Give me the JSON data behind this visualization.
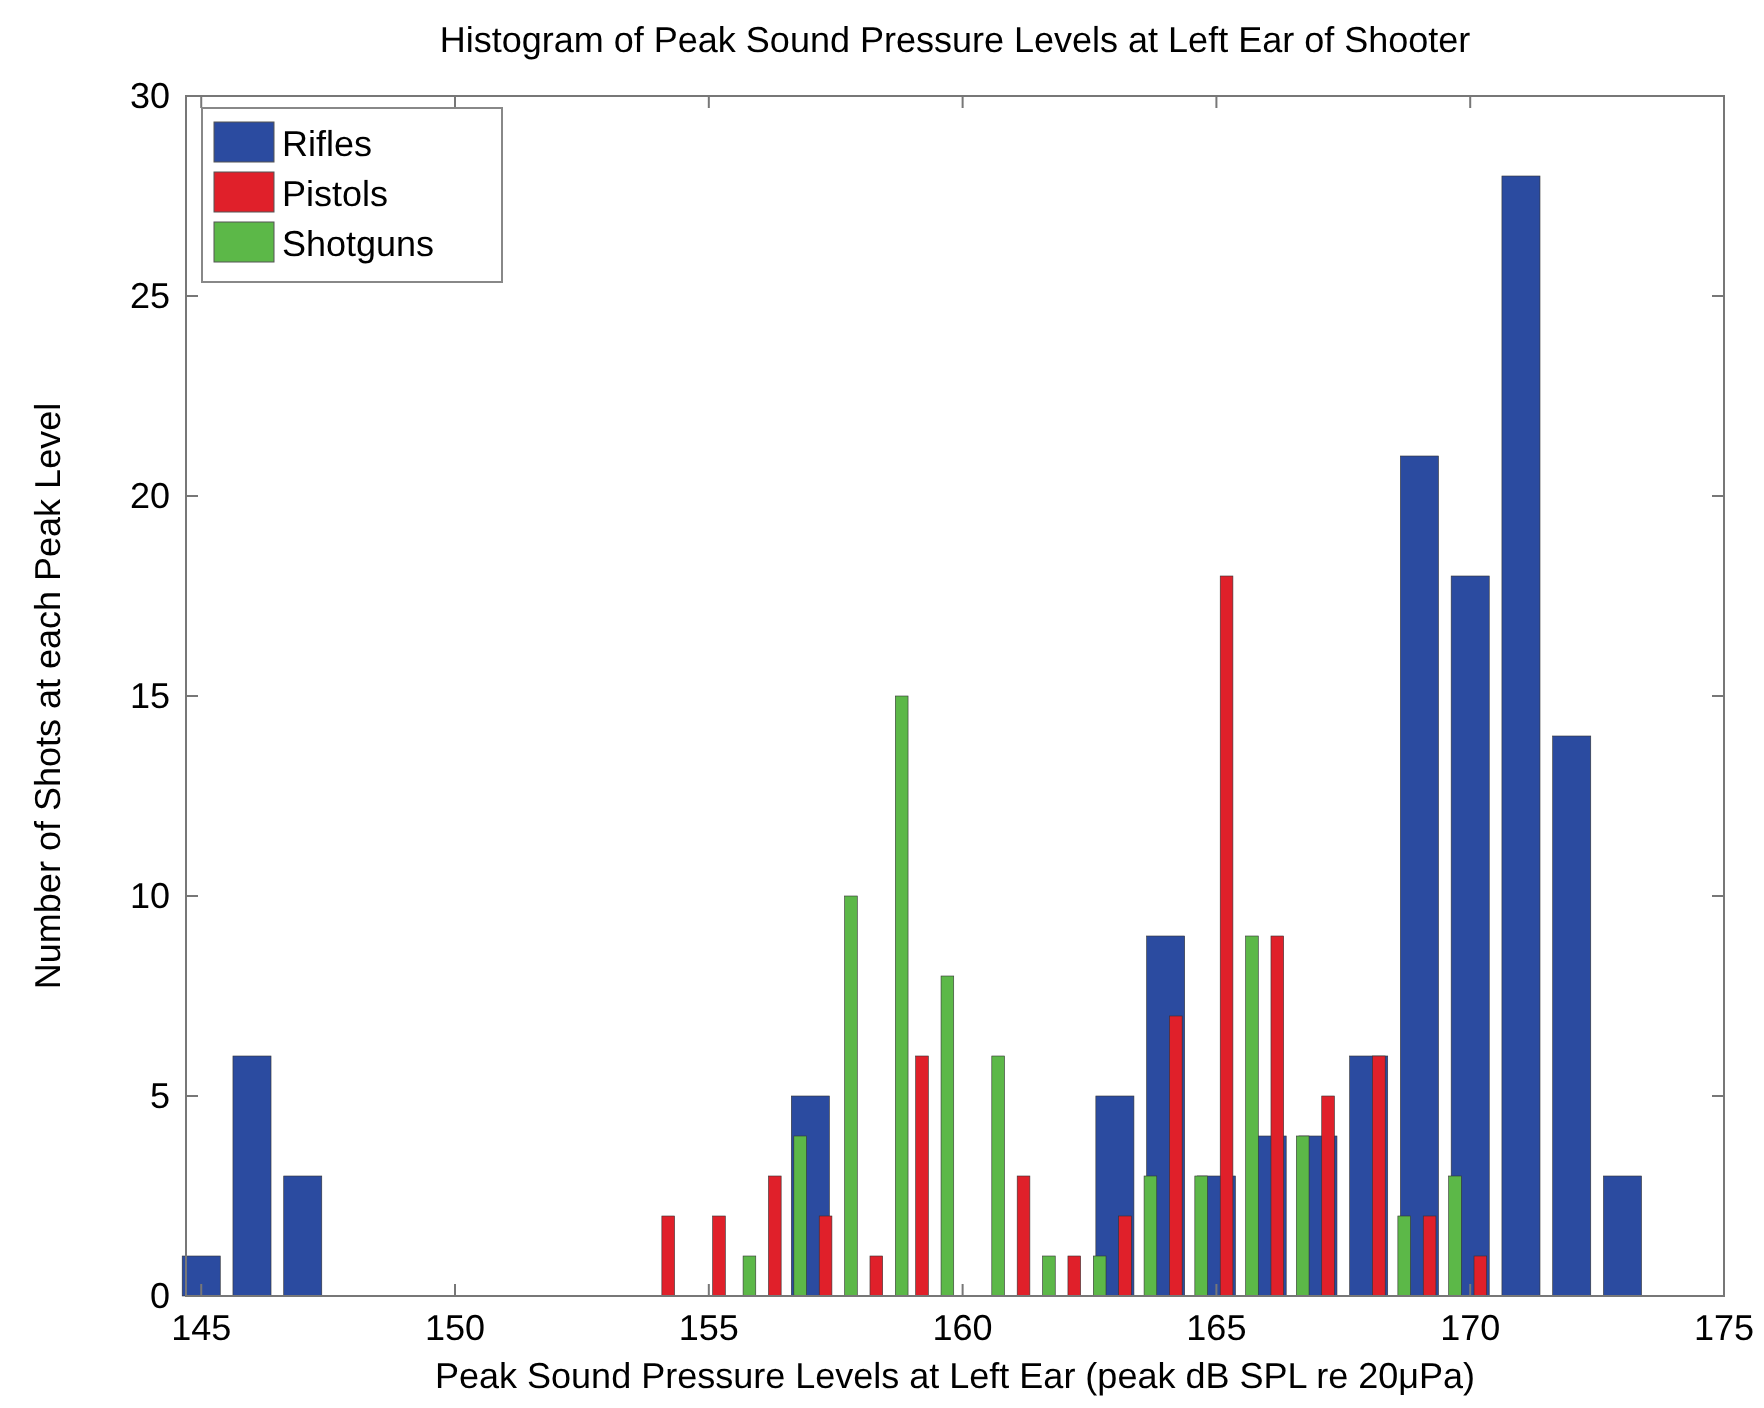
{
  "chart_data": {
    "type": "bar",
    "title": "Histogram of Peak Sound Pressure Levels at Left Ear of Shooter",
    "xlabel": "Peak Sound Pressure Levels at Left Ear (peak dB SPL re 20μPa)",
    "ylabel": "Number of Shots at each Peak Level",
    "xlim": [
      144.7,
      175
    ],
    "xticks": [
      145,
      150,
      155,
      160,
      165,
      170,
      175
    ],
    "ylim": [
      0,
      30
    ],
    "yticks": [
      0,
      5,
      10,
      15,
      20,
      25,
      30
    ],
    "grid": false,
    "legend": "top left",
    "series": [
      {
        "name": "Rifles",
        "color": "#2b4ba0",
        "x": [
          145,
          146,
          147,
          157,
          163,
          164,
          165,
          166,
          167,
          168,
          169,
          170,
          171,
          172,
          173
        ],
        "values": [
          1,
          6,
          3,
          5,
          5,
          9,
          3,
          4,
          4,
          6,
          21,
          18,
          28,
          14,
          3
        ]
      },
      {
        "name": "Pistols",
        "color": "#e0202a",
        "x": [
          154.2,
          155.2,
          156.3,
          157.3,
          158.3,
          159.2,
          161.2,
          162.2,
          163.2,
          164.2,
          165.2,
          166.2,
          167.2,
          168.2,
          169.2,
          170.2
        ],
        "values": [
          2,
          2,
          3,
          2,
          1,
          6,
          3,
          1,
          2,
          7,
          18,
          9,
          5,
          6,
          2,
          1
        ]
      },
      {
        "name": "Shotguns",
        "color": "#5cb848",
        "x": [
          155.8,
          156.8,
          157.8,
          158.8,
          159.7,
          160.7,
          161.7,
          162.7,
          163.7,
          164.7,
          165.7,
          166.7,
          168.7,
          169.7
        ],
        "values": [
          1,
          4,
          10,
          15,
          8,
          6,
          1,
          1,
          3,
          3,
          9,
          4,
          2,
          3
        ]
      }
    ]
  }
}
